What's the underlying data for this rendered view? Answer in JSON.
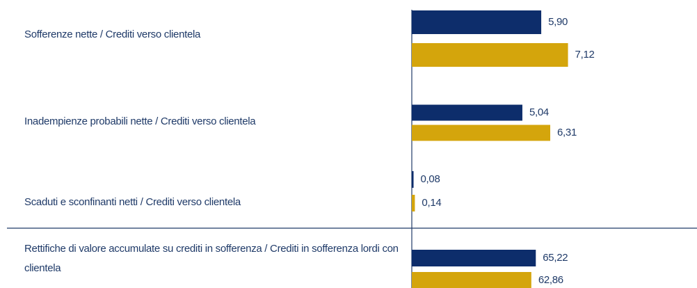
{
  "chart_data": [
    {
      "type": "barh",
      "categories": [
        "Sofferenze nette / Crediti verso clientela",
        "Inadempienze probabili nette / Crediti verso clientela",
        "Scaduti e sconfinanti netti / Crediti verso clientela"
      ],
      "series": [
        {
          "color": "#0d2d6b",
          "values": [
            5.9,
            5.04,
            0.08
          ],
          "value_labels": [
            "5,90",
            "5,04",
            "0,08"
          ]
        },
        {
          "color": "#d4a50c",
          "values": [
            7.12,
            6.31,
            0.14
          ],
          "value_labels": [
            "7,12",
            "6,31",
            "0,14"
          ]
        }
      ],
      "xlim": [
        0,
        13
      ]
    },
    {
      "type": "barh",
      "categories": [
        "Rettifiche di valore accumulate su crediti in sofferenza / Crediti in sofferenza lordi con clientela"
      ],
      "series": [
        {
          "color": "#0d2d6b",
          "values": [
            65.22
          ],
          "value_labels": [
            "65,22"
          ]
        },
        {
          "color": "#d4a50c",
          "values": [
            62.86
          ],
          "value_labels": [
            "62,86"
          ]
        }
      ],
      "xlim": [
        0,
        150
      ]
    }
  ]
}
